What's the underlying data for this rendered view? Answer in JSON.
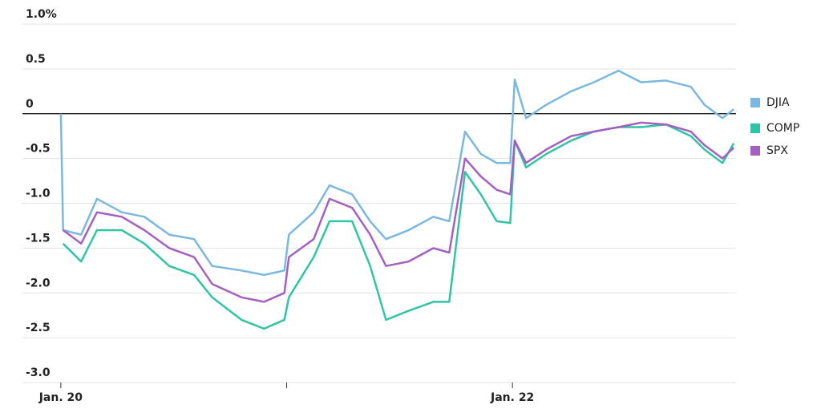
{
  "chart_data": {
    "type": "line",
    "x": [
      0,
      0.01,
      0.09,
      0.16,
      0.27,
      0.37,
      0.48,
      0.59,
      0.67,
      0.8,
      0.9,
      0.99,
      1.01,
      1.12,
      1.19,
      1.29,
      1.37,
      1.44,
      1.54,
      1.65,
      1.72,
      1.79,
      1.86,
      1.93,
      1.99,
      2.01,
      2.06,
      2.15,
      2.26,
      2.36,
      2.47,
      2.57,
      2.68,
      2.79,
      2.85,
      2.93,
      2.98
    ],
    "series": [
      {
        "name": "DJIA",
        "color": "#7ab8e0",
        "values": [
          0,
          -1.3,
          -1.35,
          -0.95,
          -1.1,
          -1.15,
          -1.35,
          -1.4,
          -1.7,
          -1.75,
          -1.8,
          -1.75,
          -1.35,
          -1.1,
          -0.8,
          -0.9,
          -1.2,
          -1.4,
          -1.3,
          -1.15,
          -1.2,
          -0.2,
          -0.45,
          -0.55,
          -0.55,
          0.38,
          -0.05,
          0.1,
          0.25,
          0.35,
          0.48,
          0.35,
          0.37,
          0.3,
          0.1,
          -0.05,
          0.05
        ]
      },
      {
        "name": "COMP",
        "color": "#2fc4a4",
        "values": [
          null,
          -1.45,
          -1.65,
          -1.3,
          -1.3,
          -1.45,
          -1.7,
          -1.8,
          -2.05,
          -2.3,
          -2.4,
          -2.3,
          -2.05,
          -1.6,
          -1.2,
          -1.2,
          -1.7,
          -2.3,
          -2.2,
          -2.1,
          -2.1,
          -0.65,
          -0.9,
          -1.2,
          -1.22,
          -0.3,
          -0.6,
          -0.45,
          -0.3,
          -0.2,
          -0.15,
          -0.15,
          -0.12,
          -0.25,
          -0.4,
          -0.55,
          -0.33
        ]
      },
      {
        "name": "SPX",
        "color": "#a55fc2",
        "values": [
          null,
          -1.3,
          -1.45,
          -1.1,
          -1.15,
          -1.3,
          -1.5,
          -1.6,
          -1.9,
          -2.05,
          -2.1,
          -2.0,
          -1.6,
          -1.4,
          -0.95,
          -1.05,
          -1.35,
          -1.7,
          -1.65,
          -1.5,
          -1.55,
          -0.5,
          -0.7,
          -0.85,
          -0.9,
          -0.3,
          -0.55,
          -0.4,
          -0.25,
          -0.2,
          -0.15,
          -0.1,
          -0.12,
          -0.2,
          -0.35,
          -0.5,
          -0.38
        ]
      }
    ],
    "xlim": [
      -0.17,
      2.99
    ],
    "xticks": [
      {
        "value": 0,
        "label": "Jan. 20"
      },
      {
        "value": 1,
        "label": null
      },
      {
        "value": 2,
        "label": "Jan. 22"
      }
    ],
    "ylim": [
      -3,
      1
    ],
    "yticks": [
      {
        "value": 1,
        "label": "1.0%"
      },
      0.5,
      0,
      -0.5,
      {
        "value": -1,
        "label": "-1.0"
      },
      -1.5,
      {
        "value": -2,
        "label": "-2.0"
      },
      -2.5,
      {
        "value": -3,
        "label": "-3.0"
      }
    ],
    "grid": true,
    "legend": "right"
  }
}
